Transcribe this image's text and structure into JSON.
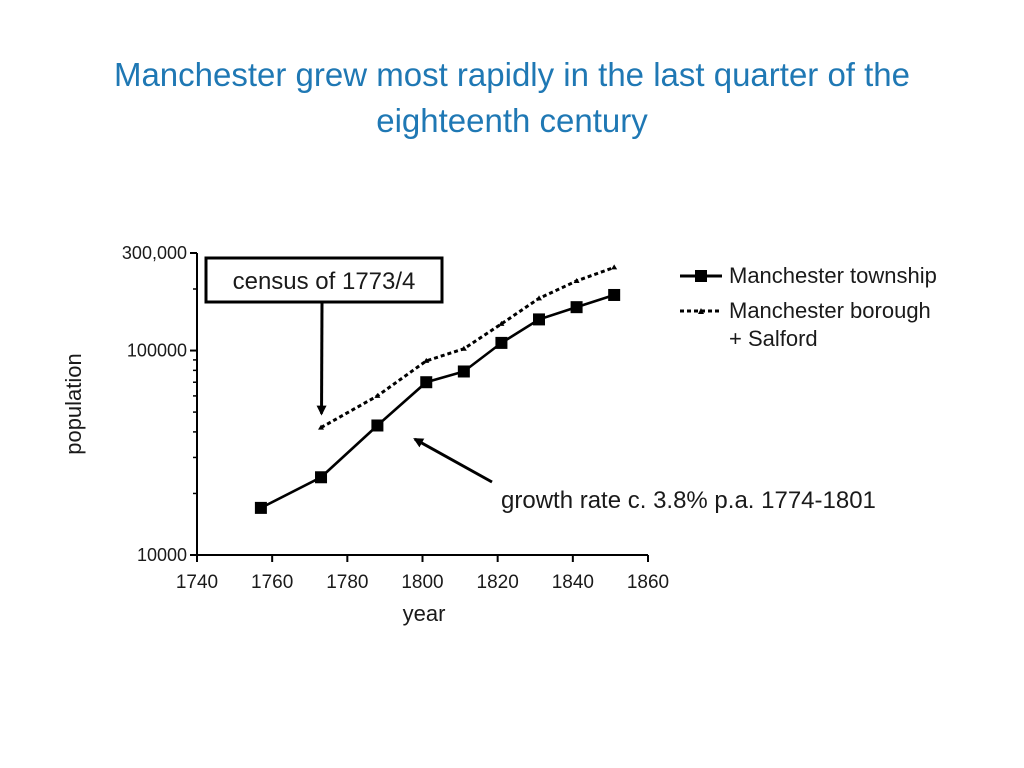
{
  "slide": {
    "title": "Manchester grew most rapidly in the last quarter of the eighteenth century"
  },
  "colors": {
    "title": "#1f78b4",
    "ink": "#000000"
  },
  "chart_data": {
    "type": "line",
    "title": "",
    "xlabel": "year",
    "ylabel": "population",
    "xlim": [
      1740,
      1860
    ],
    "ylim": [
      10000,
      300000
    ],
    "yscale": "log",
    "grid": false,
    "legend_position": "right",
    "x_ticks": [
      {
        "value": 1740,
        "label": "1740"
      },
      {
        "value": 1760,
        "label": "1760"
      },
      {
        "value": 1780,
        "label": "1780"
      },
      {
        "value": 1800,
        "label": "1800"
      },
      {
        "value": 1820,
        "label": "1820"
      },
      {
        "value": 1840,
        "label": "1840"
      },
      {
        "value": 1860,
        "label": "1860"
      }
    ],
    "y_ticks": [
      {
        "value": 10000,
        "label": "10000"
      },
      {
        "value": 100000,
        "label": "100000"
      },
      {
        "value": 300000,
        "label": "300,000"
      }
    ],
    "series": [
      {
        "name": "Manchester township",
        "style": "solid-square",
        "x": [
          1757,
          1773,
          1788,
          1801,
          1811,
          1821,
          1831,
          1841,
          1851
        ],
        "y": [
          17000,
          24000,
          43000,
          70000,
          79000,
          109000,
          142000,
          163000,
          187000
        ]
      },
      {
        "name": "Manchester borough\n+ Salford",
        "style": "dotted-triangle",
        "x": [
          1773,
          1788,
          1801,
          1811,
          1821,
          1831,
          1841,
          1851
        ],
        "y": [
          42000,
          60000,
          89000,
          102000,
          135000,
          180000,
          219000,
          255000
        ]
      }
    ],
    "annotations": [
      {
        "id": "census",
        "text": "census of 1773/4",
        "boxed": true,
        "arrow_to": {
          "x": 1773,
          "y": 47000
        }
      },
      {
        "id": "growth",
        "text": "growth rate c. 3.8% p.a. 1774-1801",
        "boxed": false,
        "arrow_to": {
          "x": 1790,
          "y": 39000
        }
      }
    ]
  }
}
